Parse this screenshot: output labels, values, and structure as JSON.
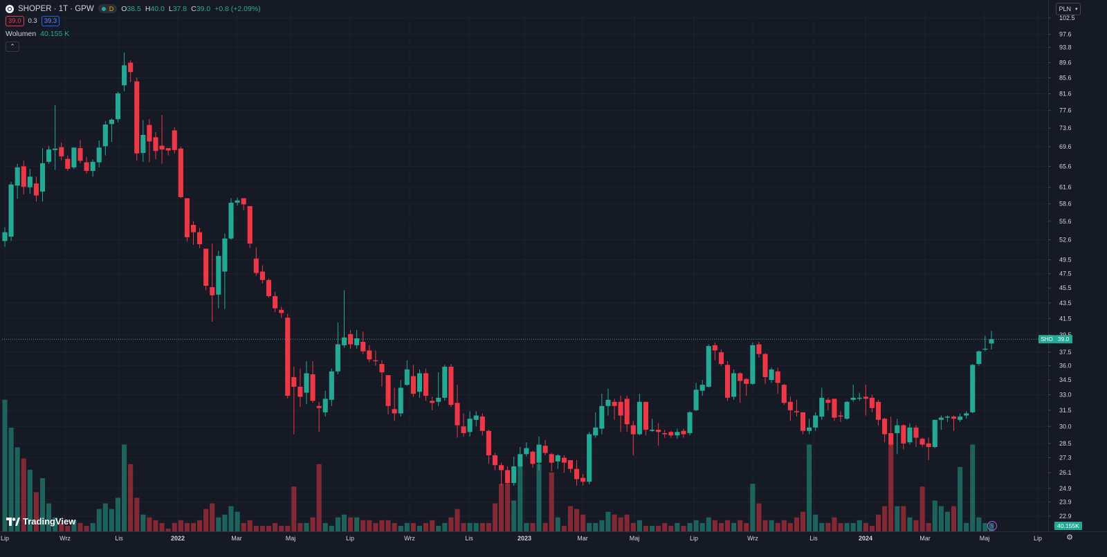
{
  "header": {
    "symbol": "SHOPER · 1T · GPW",
    "interval_badge": "D",
    "ohlc": [
      {
        "k": "O",
        "v": "38.5"
      },
      {
        "k": "H",
        "v": "40.0"
      },
      {
        "k": "L",
        "v": "37.8"
      },
      {
        "k": "C",
        "v": "39.0"
      }
    ],
    "change": "+0.8 (+2.09%)",
    "bid": "39.0",
    "spread": "0.3",
    "ask": "39.3",
    "volume_label": "Wolumen",
    "volume_value": "40.155 K",
    "currency": "PLN",
    "logo_text": "TradingView"
  },
  "colors": {
    "background": "#161a25",
    "up": "#22ab94",
    "down": "#f23645",
    "up_volume": "#22ab9480",
    "down_volume": "#f2364580",
    "grid": "#1e222d",
    "text": "#d1d4dc"
  },
  "chart_data": {
    "type": "candlestick",
    "y_scale": "log",
    "ylim": [
      22.2,
      104
    ],
    "y_ticks": [
      "102.5",
      "97.6",
      "93.8",
      "89.6",
      "85.6",
      "81.6",
      "77.6",
      "73.6",
      "69.6",
      "65.6",
      "61.6",
      "58.6",
      "55.6",
      "52.6",
      "49.5",
      "47.5",
      "45.5",
      "43.5",
      "41.5",
      "39.5",
      "37.5",
      "36.0",
      "34.5",
      "33.0",
      "31.5",
      "30.0",
      "28.5",
      "27.3",
      "26.1",
      "24.9",
      "23.9",
      "22.9"
    ],
    "x_labels": [
      "Lip",
      "Wrz",
      "Lis",
      "2022",
      "Mar",
      "Maj",
      "Lip",
      "Wrz",
      "Lis",
      "2023",
      "Mar",
      "Maj",
      "Lip",
      "Wrz",
      "Lis",
      "2024",
      "Mar",
      "Maj",
      "Lip"
    ],
    "last_price_label": {
      "symbol": "SHO",
      "value": "39.0"
    },
    "last_price": 39.0,
    "volume_last_label": "40.155K",
    "candles": [
      [
        52.4,
        53.8,
        51.5,
        54.6,
        47
      ],
      [
        53.1,
        62.1,
        52.4,
        62.6,
        37
      ],
      [
        61.9,
        65.4,
        59.5,
        66.1,
        30
      ],
      [
        65.6,
        61.7,
        60.3,
        66.7,
        26
      ],
      [
        61.6,
        63.6,
        60.4,
        65.1,
        22
      ],
      [
        62.3,
        60.1,
        59.0,
        63.6,
        14
      ],
      [
        60.8,
        66.2,
        59.0,
        69.3,
        19
      ],
      [
        66.5,
        69.0,
        66.1,
        69.8,
        10
      ],
      [
        68.9,
        69.2,
        64.9,
        78.9,
        5
      ],
      [
        69.5,
        67.6,
        66.8,
        70.5,
        3
      ],
      [
        67.1,
        65.1,
        64.7,
        67.8,
        2
      ],
      [
        65.4,
        69.4,
        65.1,
        69.5,
        4
      ],
      [
        69.3,
        66.7,
        66.2,
        71.0,
        3
      ],
      [
        66.4,
        64.7,
        64.2,
        67.5,
        2
      ],
      [
        64.7,
        66.5,
        63.6,
        67.0,
        3
      ],
      [
        66.4,
        69.4,
        65.4,
        70.9,
        8
      ],
      [
        69.7,
        74.4,
        67.8,
        75.2,
        10
      ],
      [
        74.5,
        75.5,
        70.6,
        75.8,
        8
      ],
      [
        75.6,
        81.7,
        74.9,
        82.1,
        12
      ],
      [
        83.7,
        88.9,
        82.2,
        92.4,
        31
      ],
      [
        89.6,
        87.1,
        84.5,
        90.3,
        24
      ],
      [
        84.7,
        68.2,
        66.8,
        85.7,
        12
      ],
      [
        68.3,
        72.1,
        66.5,
        75.4,
        6
      ],
      [
        74.3,
        70.7,
        66.4,
        75.6,
        5
      ],
      [
        71.6,
        68.7,
        67.0,
        72.7,
        4
      ],
      [
        69.8,
        69.0,
        66.1,
        76.6,
        3
      ],
      [
        69.3,
        68.8,
        67.8,
        69.3,
        1
      ],
      [
        73.1,
        68.9,
        68.2,
        73.8,
        3
      ],
      [
        69.2,
        59.8,
        59.6,
        69.6,
        4
      ],
      [
        59.6,
        53.0,
        52.3,
        59.5,
        3
      ],
      [
        55.0,
        53.8,
        51.8,
        55.6,
        3
      ],
      [
        53.8,
        51.9,
        51.3,
        54.5,
        4
      ],
      [
        51.2,
        45.8,
        45.2,
        51.2,
        8
      ],
      [
        45.6,
        44.5,
        41.1,
        52.0,
        10
      ],
      [
        44.6,
        50.1,
        42.8,
        50.9,
        5
      ],
      [
        47.8,
        52.8,
        42.7,
        53.6,
        6
      ],
      [
        52.8,
        58.8,
        52.6,
        59.6,
        9
      ],
      [
        58.8,
        59.2,
        58.3,
        59.7,
        7
      ],
      [
        59.6,
        58.5,
        57.5,
        59.6,
        3
      ],
      [
        58.2,
        52.0,
        51.3,
        58.2,
        4
      ],
      [
        49.7,
        47.6,
        47.2,
        51.4,
        2
      ],
      [
        47.8,
        46.6,
        46.1,
        48.7,
        2
      ],
      [
        46.6,
        44.4,
        44.2,
        46.8,
        2
      ],
      [
        44.4,
        42.8,
        42.3,
        45.0,
        3
      ],
      [
        42.6,
        42.2,
        41.6,
        43.0,
        2
      ],
      [
        41.6,
        32.9,
        32.6,
        42.1,
        2
      ],
      [
        34.8,
        33.8,
        29.3,
        35.9,
        16
      ],
      [
        33.8,
        32.8,
        31.8,
        35.7,
        3
      ],
      [
        33.2,
        35.2,
        32.1,
        36.5,
        3
      ],
      [
        35.1,
        32.4,
        32.2,
        36.5,
        5
      ],
      [
        31.9,
        31.7,
        29.5,
        32.3,
        24
      ],
      [
        31.3,
        32.6,
        30.9,
        33.4,
        3
      ],
      [
        32.5,
        35.4,
        31.9,
        35.7,
        2
      ],
      [
        35.4,
        38.4,
        35.1,
        41.0,
        5
      ],
      [
        38.3,
        39.2,
        38.0,
        45.2,
        6
      ],
      [
        39.6,
        38.4,
        37.9,
        40.1,
        5
      ],
      [
        38.3,
        39.1,
        37.9,
        40.1,
        5
      ],
      [
        38.7,
        37.6,
        37.3,
        39.9,
        4
      ],
      [
        37.7,
        36.7,
        36.4,
        38.3,
        4
      ],
      [
        36.6,
        36.5,
        36.0,
        37.7,
        3
      ],
      [
        36.2,
        35.3,
        33.8,
        36.6,
        4
      ],
      [
        35.0,
        31.9,
        31.1,
        35.0,
        4
      ],
      [
        31.6,
        31.2,
        30.5,
        33.7,
        3
      ],
      [
        31.2,
        33.7,
        30.9,
        34.5,
        2
      ],
      [
        34.0,
        35.6,
        33.9,
        36.6,
        3
      ],
      [
        34.9,
        33.1,
        32.8,
        36.1,
        3
      ],
      [
        33.3,
        35.2,
        32.7,
        35.6,
        2
      ],
      [
        35.2,
        32.9,
        32.4,
        35.7,
        3
      ],
      [
        32.4,
        32.2,
        31.5,
        32.8,
        4
      ],
      [
        32.3,
        32.7,
        31.9,
        35.3,
        2
      ],
      [
        32.7,
        35.9,
        32.4,
        36.1,
        3
      ],
      [
        35.9,
        32.0,
        31.8,
        36.2,
        5
      ],
      [
        32.2,
        30.1,
        29.0,
        34.0,
        8
      ],
      [
        30.0,
        29.4,
        29.1,
        31.2,
        3
      ],
      [
        29.5,
        30.7,
        29.1,
        31.4,
        3
      ],
      [
        30.6,
        31.0,
        30.0,
        31.4,
        3
      ],
      [
        30.9,
        29.6,
        29.2,
        31.2,
        3
      ],
      [
        29.6,
        27.5,
        26.8,
        29.7,
        3
      ],
      [
        27.5,
        26.7,
        26.3,
        27.7,
        10
      ],
      [
        26.7,
        26.3,
        25.1,
        26.9,
        17
      ],
      [
        26.3,
        25.3,
        25.2,
        26.6,
        17
      ],
      [
        25.3,
        26.6,
        25.1,
        27.4,
        11
      ],
      [
        26.6,
        27.6,
        26.5,
        28.2,
        24
      ],
      [
        27.6,
        28.1,
        27.4,
        28.6,
        3
      ],
      [
        27.8,
        26.8,
        26.5,
        27.9,
        3
      ],
      [
        26.9,
        28.4,
        26.3,
        29.1,
        24
      ],
      [
        28.3,
        27.7,
        27.5,
        28.8,
        3
      ],
      [
        27.6,
        26.9,
        26.2,
        27.7,
        21
      ],
      [
        27.0,
        27.5,
        26.4,
        27.6,
        5
      ],
      [
        27.3,
        26.9,
        26.1,
        27.5,
        2
      ],
      [
        27.1,
        26.4,
        26.1,
        27.1,
        9
      ],
      [
        26.4,
        25.6,
        25.1,
        27.1,
        8
      ],
      [
        25.7,
        25.4,
        25.1,
        26.0,
        6
      ],
      [
        25.4,
        29.3,
        25.2,
        29.5,
        3
      ],
      [
        29.2,
        29.9,
        29.0,
        31.3,
        3
      ],
      [
        29.8,
        31.9,
        29.3,
        33.1,
        4
      ],
      [
        31.9,
        32.5,
        31.0,
        33.6,
        7
      ],
      [
        32.3,
        31.9,
        30.6,
        32.6,
        6
      ],
      [
        32.3,
        31.0,
        29.5,
        32.9,
        5
      ],
      [
        32.6,
        30.2,
        29.5,
        32.9,
        6
      ],
      [
        30.1,
        29.3,
        27.5,
        30.5,
        3
      ],
      [
        29.3,
        32.3,
        29.2,
        33.1,
        4
      ],
      [
        32.3,
        29.7,
        29.2,
        32.3,
        2
      ],
      [
        29.6,
        29.7,
        29.5,
        30.7,
        2
      ],
      [
        29.7,
        29.5,
        28.3,
        30.3,
        2
      ],
      [
        29.4,
        29.3,
        29.0,
        29.7,
        3
      ],
      [
        29.5,
        29.2,
        29.0,
        29.6,
        2
      ],
      [
        29.2,
        29.5,
        28.9,
        29.8,
        3
      ],
      [
        29.6,
        29.3,
        29.0,
        29.8,
        2
      ],
      [
        29.4,
        31.3,
        29.2,
        31.4,
        3
      ],
      [
        31.5,
        33.5,
        31.4,
        34.2,
        4
      ],
      [
        33.4,
        34.0,
        32.9,
        34.5,
        3
      ],
      [
        33.8,
        38.2,
        33.7,
        38.4,
        5
      ],
      [
        38.3,
        37.7,
        36.6,
        38.6,
        4
      ],
      [
        37.5,
        36.2,
        36.0,
        37.8,
        3
      ],
      [
        36.1,
        32.7,
        32.4,
        36.5,
        4
      ],
      [
        32.8,
        35.2,
        32.5,
        35.6,
        3
      ],
      [
        35.2,
        34.4,
        32.2,
        35.3,
        4
      ],
      [
        34.6,
        34.1,
        32.9,
        34.7,
        3
      ],
      [
        34.1,
        38.3,
        34.0,
        38.6,
        17
      ],
      [
        38.4,
        37.3,
        36.9,
        38.7,
        10
      ],
      [
        37.3,
        34.8,
        34.1,
        37.4,
        4
      ],
      [
        34.5,
        35.6,
        34.2,
        35.8,
        4
      ],
      [
        35.4,
        34.2,
        33.1,
        35.8,
        3
      ],
      [
        34.0,
        32.2,
        32.0,
        34.1,
        4
      ],
      [
        32.3,
        31.5,
        30.5,
        32.8,
        3
      ],
      [
        31.4,
        31.3,
        30.9,
        32.5,
        5
      ],
      [
        31.3,
        29.6,
        29.3,
        31.3,
        7
      ],
      [
        29.6,
        29.9,
        29.3,
        30.7,
        31
      ],
      [
        29.9,
        31.0,
        29.6,
        31.3,
        6
      ],
      [
        30.9,
        32.7,
        30.6,
        33.7,
        3
      ],
      [
        32.5,
        32.2,
        31.5,
        32.7,
        3
      ],
      [
        32.6,
        30.8,
        30.5,
        32.6,
        5
      ],
      [
        31.0,
        30.9,
        30.4,
        31.4,
        3
      ],
      [
        30.7,
        32.3,
        30.6,
        32.4,
        3
      ],
      [
        32.5,
        32.7,
        32.3,
        34.0,
        3
      ],
      [
        32.6,
        32.7,
        32.4,
        33.2,
        4
      ],
      [
        32.8,
        32.6,
        31.0,
        34.0,
        3
      ],
      [
        32.7,
        31.7,
        31.3,
        33.0,
        2
      ],
      [
        32.3,
        30.6,
        30.1,
        32.5,
        6
      ],
      [
        30.7,
        29.3,
        28.6,
        30.8,
        9
      ],
      [
        29.4,
        28.4,
        28.3,
        30.9,
        31
      ],
      [
        29.4,
        30.1,
        27.6,
        30.7,
        9
      ],
      [
        30.1,
        28.5,
        28.0,
        30.2,
        9
      ],
      [
        28.6,
        29.9,
        28.4,
        30.3,
        5
      ],
      [
        29.9,
        29.0,
        28.2,
        30.1,
        4
      ],
      [
        28.9,
        28.4,
        28.2,
        29.0,
        16
      ],
      [
        28.5,
        28.2,
        27.1,
        29.0,
        3
      ],
      [
        28.2,
        30.6,
        28.1,
        30.6,
        11
      ],
      [
        30.6,
        30.8,
        29.7,
        31.0,
        9
      ],
      [
        30.8,
        30.9,
        30.4,
        31.0,
        7
      ],
      [
        30.9,
        30.7,
        29.6,
        31.0,
        9
      ],
      [
        30.6,
        30.9,
        30.4,
        31.2,
        23
      ],
      [
        31.0,
        31.2,
        30.7,
        31.4,
        3
      ],
      [
        31.3,
        36.1,
        31.2,
        36.2,
        31
      ],
      [
        36.2,
        37.6,
        36.0,
        37.7,
        5
      ],
      [
        37.8,
        37.9,
        37.6,
        39.4,
        3
      ],
      [
        38.5,
        39.0,
        37.8,
        40.0,
        3
      ]
    ]
  }
}
